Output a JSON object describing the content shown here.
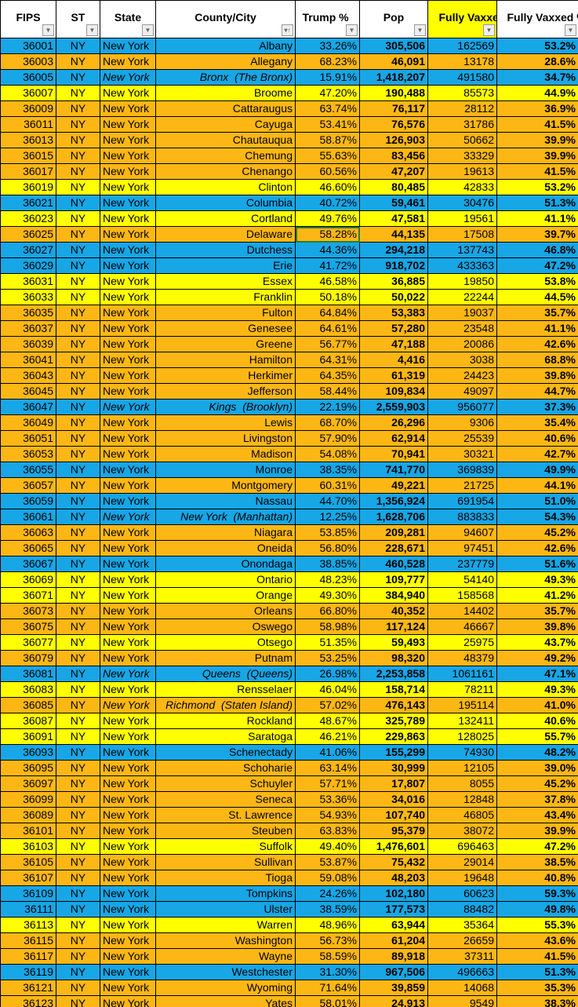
{
  "colors": {
    "blue": "#17a6e6",
    "orange": "#fdb714",
    "yellow": "#ffff00"
  },
  "headers": {
    "fips": "FIPS",
    "st": "ST",
    "state": "State",
    "county": "County/City",
    "trump": "Trump %",
    "pop": "Pop",
    "vaxxed": "Fully Vaxxed",
    "vaxxed_pct": "Fully Vaxxed %"
  },
  "icons": {
    "filter": "filter-dropdown-icon",
    "sort": "sort-ascending-filter-icon"
  },
  "selected_cell": {
    "fips": "36025",
    "column": "trump"
  },
  "rows": [
    [
      "36001",
      "NY",
      "New York",
      "Albany",
      "33.26%",
      "305,506",
      "162569",
      "53.2%",
      "blue",
      false
    ],
    [
      "36003",
      "NY",
      "New York",
      "Allegany",
      "68.23%",
      "46,091",
      "13178",
      "28.6%",
      "orange",
      false
    ],
    [
      "36005",
      "NY",
      "New York",
      "Bronx  (The Bronx)",
      "15.91%",
      "1,418,207",
      "491580",
      "34.7%",
      "blue",
      true
    ],
    [
      "36007",
      "NY",
      "New York",
      "Broome",
      "47.20%",
      "190,488",
      "85573",
      "44.9%",
      "yellow",
      false
    ],
    [
      "36009",
      "NY",
      "New York",
      "Cattaraugus",
      "63.74%",
      "76,117",
      "28112",
      "36.9%",
      "orange",
      false
    ],
    [
      "36011",
      "NY",
      "New York",
      "Cayuga",
      "53.41%",
      "76,576",
      "31786",
      "41.5%",
      "orange",
      false
    ],
    [
      "36013",
      "NY",
      "New York",
      "Chautauqua",
      "58.87%",
      "126,903",
      "50662",
      "39.9%",
      "orange",
      false
    ],
    [
      "36015",
      "NY",
      "New York",
      "Chemung",
      "55.63%",
      "83,456",
      "33329",
      "39.9%",
      "orange",
      false
    ],
    [
      "36017",
      "NY",
      "New York",
      "Chenango",
      "60.56%",
      "47,207",
      "19613",
      "41.5%",
      "orange",
      false
    ],
    [
      "36019",
      "NY",
      "New York",
      "Clinton",
      "46.60%",
      "80,485",
      "42833",
      "53.2%",
      "yellow",
      false
    ],
    [
      "36021",
      "NY",
      "New York",
      "Columbia",
      "40.72%",
      "59,461",
      "30476",
      "51.3%",
      "blue",
      false
    ],
    [
      "36023",
      "NY",
      "New York",
      "Cortland",
      "49.76%",
      "47,581",
      "19561",
      "41.1%",
      "yellow",
      false
    ],
    [
      "36025",
      "NY",
      "New York",
      "Delaware",
      "58.28%",
      "44,135",
      "17508",
      "39.7%",
      "orange",
      false
    ],
    [
      "36027",
      "NY",
      "New York",
      "Dutchess",
      "44.36%",
      "294,218",
      "137743",
      "46.8%",
      "blue",
      false
    ],
    [
      "36029",
      "NY",
      "New York",
      "Erie",
      "41.72%",
      "918,702",
      "433363",
      "47.2%",
      "blue",
      false
    ],
    [
      "36031",
      "NY",
      "New York",
      "Essex",
      "46.58%",
      "36,885",
      "19850",
      "53.8%",
      "yellow",
      false
    ],
    [
      "36033",
      "NY",
      "New York",
      "Franklin",
      "50.18%",
      "50,022",
      "22244",
      "44.5%",
      "yellow",
      false
    ],
    [
      "36035",
      "NY",
      "New York",
      "Fulton",
      "64.84%",
      "53,383",
      "19037",
      "35.7%",
      "orange",
      false
    ],
    [
      "36037",
      "NY",
      "New York",
      "Genesee",
      "64.61%",
      "57,280",
      "23548",
      "41.1%",
      "orange",
      false
    ],
    [
      "36039",
      "NY",
      "New York",
      "Greene",
      "56.77%",
      "47,188",
      "20086",
      "42.6%",
      "orange",
      false
    ],
    [
      "36041",
      "NY",
      "New York",
      "Hamilton",
      "64.31%",
      "4,416",
      "3038",
      "68.8%",
      "orange",
      false
    ],
    [
      "36043",
      "NY",
      "New York",
      "Herkimer",
      "64.35%",
      "61,319",
      "24423",
      "39.8%",
      "orange",
      false
    ],
    [
      "36045",
      "NY",
      "New York",
      "Jefferson",
      "58.44%",
      "109,834",
      "49097",
      "44.7%",
      "orange",
      false
    ],
    [
      "36047",
      "NY",
      "New York",
      "Kings  (Brooklyn)",
      "22.19%",
      "2,559,903",
      "956077",
      "37.3%",
      "blue",
      true
    ],
    [
      "36049",
      "NY",
      "New York",
      "Lewis",
      "68.70%",
      "26,296",
      "9306",
      "35.4%",
      "orange",
      false
    ],
    [
      "36051",
      "NY",
      "New York",
      "Livingston",
      "57.90%",
      "62,914",
      "25539",
      "40.6%",
      "orange",
      false
    ],
    [
      "36053",
      "NY",
      "New York",
      "Madison",
      "54.08%",
      "70,941",
      "30321",
      "42.7%",
      "orange",
      false
    ],
    [
      "36055",
      "NY",
      "New York",
      "Monroe",
      "38.35%",
      "741,770",
      "369839",
      "49.9%",
      "blue",
      false
    ],
    [
      "36057",
      "NY",
      "New York",
      "Montgomery",
      "60.31%",
      "49,221",
      "21725",
      "44.1%",
      "orange",
      false
    ],
    [
      "36059",
      "NY",
      "New York",
      "Nassau",
      "44.70%",
      "1,356,924",
      "691954",
      "51.0%",
      "blue",
      false
    ],
    [
      "36061",
      "NY",
      "New York",
      "New York  (Manhattan)",
      "12.25%",
      "1,628,706",
      "883833",
      "54.3%",
      "blue",
      true
    ],
    [
      "36063",
      "NY",
      "New York",
      "Niagara",
      "53.85%",
      "209,281",
      "94607",
      "45.2%",
      "orange",
      false
    ],
    [
      "36065",
      "NY",
      "New York",
      "Oneida",
      "56.80%",
      "228,671",
      "97451",
      "42.6%",
      "orange",
      false
    ],
    [
      "36067",
      "NY",
      "New York",
      "Onondaga",
      "38.85%",
      "460,528",
      "237779",
      "51.6%",
      "blue",
      false
    ],
    [
      "36069",
      "NY",
      "New York",
      "Ontario",
      "48.23%",
      "109,777",
      "54140",
      "49.3%",
      "yellow",
      false
    ],
    [
      "36071",
      "NY",
      "New York",
      "Orange",
      "49.30%",
      "384,940",
      "158568",
      "41.2%",
      "yellow",
      false
    ],
    [
      "36073",
      "NY",
      "New York",
      "Orleans",
      "66.80%",
      "40,352",
      "14402",
      "35.7%",
      "orange",
      false
    ],
    [
      "36075",
      "NY",
      "New York",
      "Oswego",
      "58.98%",
      "117,124",
      "46667",
      "39.8%",
      "orange",
      false
    ],
    [
      "36077",
      "NY",
      "New York",
      "Otsego",
      "51.35%",
      "59,493",
      "25975",
      "43.7%",
      "yellow",
      false
    ],
    [
      "36079",
      "NY",
      "New York",
      "Putnam",
      "53.25%",
      "98,320",
      "48379",
      "49.2%",
      "orange",
      false
    ],
    [
      "36081",
      "NY",
      "New York",
      "Queens  (Queens)",
      "26.98%",
      "2,253,858",
      "1061161",
      "47.1%",
      "blue",
      true
    ],
    [
      "36083",
      "NY",
      "New York",
      "Rensselaer",
      "46.04%",
      "158,714",
      "78211",
      "49.3%",
      "yellow",
      false
    ],
    [
      "36085",
      "NY",
      "New York",
      "Richmond  (Staten Island)",
      "57.02%",
      "476,143",
      "195114",
      "41.0%",
      "orange",
      true
    ],
    [
      "36087",
      "NY",
      "New York",
      "Rockland",
      "48.67%",
      "325,789",
      "132411",
      "40.6%",
      "yellow",
      false
    ],
    [
      "36091",
      "NY",
      "New York",
      "Saratoga",
      "46.21%",
      "229,863",
      "128025",
      "55.7%",
      "yellow",
      false
    ],
    [
      "36093",
      "NY",
      "New York",
      "Schenectady",
      "41.06%",
      "155,299",
      "74930",
      "48.2%",
      "blue",
      false
    ],
    [
      "36095",
      "NY",
      "New York",
      "Schoharie",
      "63.14%",
      "30,999",
      "12105",
      "39.0%",
      "orange",
      false
    ],
    [
      "36097",
      "NY",
      "New York",
      "Schuyler",
      "57.71%",
      "17,807",
      "8055",
      "45.2%",
      "orange",
      false
    ],
    [
      "36099",
      "NY",
      "New York",
      "Seneca",
      "53.36%",
      "34,016",
      "12848",
      "37.8%",
      "orange",
      false
    ],
    [
      "36089",
      "NY",
      "New York",
      "St. Lawrence",
      "54.93%",
      "107,740",
      "46805",
      "43.4%",
      "orange",
      false
    ],
    [
      "36101",
      "NY",
      "New York",
      "Steuben",
      "63.83%",
      "95,379",
      "38072",
      "39.9%",
      "orange",
      false
    ],
    [
      "36103",
      "NY",
      "New York",
      "Suffolk",
      "49.40%",
      "1,476,601",
      "696463",
      "47.2%",
      "yellow",
      false
    ],
    [
      "36105",
      "NY",
      "New York",
      "Sullivan",
      "53.87%",
      "75,432",
      "29014",
      "38.5%",
      "orange",
      false
    ],
    [
      "36107",
      "NY",
      "New York",
      "Tioga",
      "59.08%",
      "48,203",
      "19648",
      "40.8%",
      "orange",
      false
    ],
    [
      "36109",
      "NY",
      "New York",
      "Tompkins",
      "24.26%",
      "102,180",
      "60623",
      "59.3%",
      "blue",
      false
    ],
    [
      "36111",
      "NY",
      "New York",
      "Ulster",
      "38.59%",
      "177,573",
      "88482",
      "49.8%",
      "blue",
      false
    ],
    [
      "36113",
      "NY",
      "New York",
      "Warren",
      "48.96%",
      "63,944",
      "35364",
      "55.3%",
      "yellow",
      false
    ],
    [
      "36115",
      "NY",
      "New York",
      "Washington",
      "56.73%",
      "61,204",
      "26659",
      "43.6%",
      "orange",
      false
    ],
    [
      "36117",
      "NY",
      "New York",
      "Wayne",
      "58.59%",
      "89,918",
      "37311",
      "41.5%",
      "orange",
      false
    ],
    [
      "36119",
      "NY",
      "New York",
      "Westchester",
      "31.30%",
      "967,506",
      "496663",
      "51.3%",
      "blue",
      false
    ],
    [
      "36121",
      "NY",
      "New York",
      "Wyoming",
      "71.64%",
      "39,859",
      "14068",
      "35.3%",
      "orange",
      false
    ],
    [
      "36123",
      "NY",
      "New York",
      "Yates",
      "58.01%",
      "24,913",
      "9549",
      "38.3%",
      "orange",
      false
    ]
  ]
}
